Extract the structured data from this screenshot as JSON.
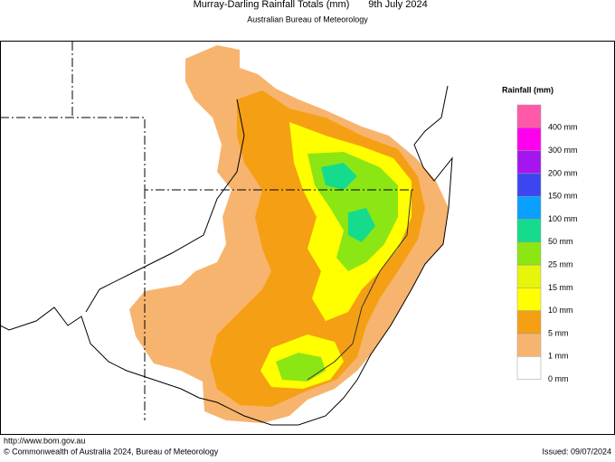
{
  "header": {
    "title": "Murray-Darling Rainfall Totals (mm)",
    "date": "9th July 2024",
    "subtitle": "Australian Bureau of Meteorology"
  },
  "legend": {
    "title": "Rainfall (mm)",
    "labels": [
      "400 mm",
      "300 mm",
      "200 mm",
      "150 mm",
      "100 mm",
      "50 mm",
      "25 mm",
      "15 mm",
      "10 mm",
      "5 mm",
      "1 mm",
      "0 mm"
    ],
    "colors": [
      "#ff5aaa",
      "#ff00ee",
      "#a515f0",
      "#3c46f0",
      "#0aa0ff",
      "#14dc8c",
      "#8ce614",
      "#e6f50a",
      "#ffff00",
      "#f5a014",
      "#f7b46e",
      "#ffffff"
    ]
  },
  "footer": {
    "url": "http://www.bom.gov.au",
    "copyright": "© Commonwealth of Australia 2024, Bureau of Meteorology",
    "issued": "Issued: 09/07/2024"
  }
}
